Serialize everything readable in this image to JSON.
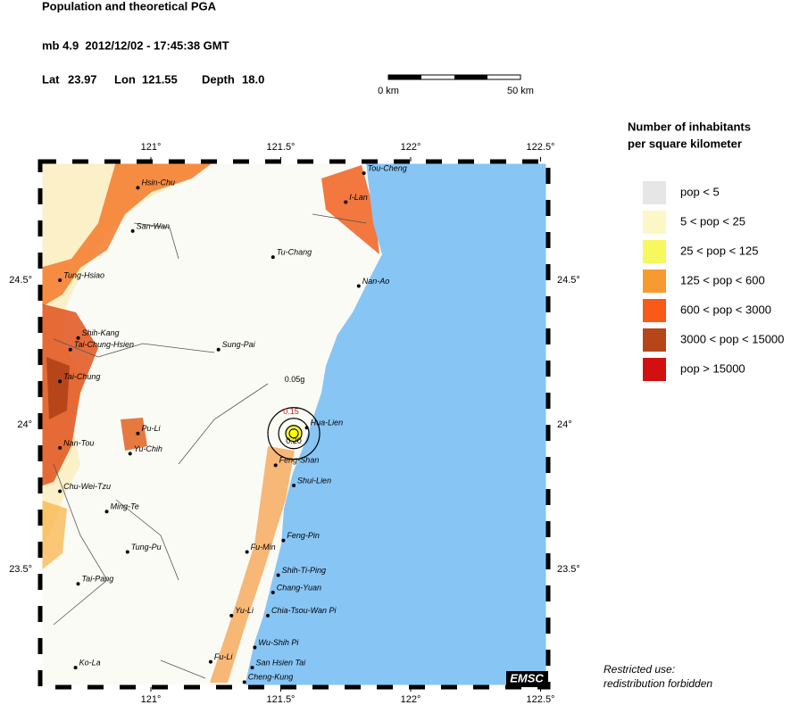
{
  "header": {
    "title": "Population and theoretical PGA",
    "event": "mb 4.9  2012/12/02 - 17:45:38 GMT",
    "lat_label": "Lat",
    "lon_label": "Lon",
    "depth_label": "Depth"
  },
  "epicenter": {
    "lat": 23.97,
    "lon": 121.55,
    "depth": {
      "value": 18,
      "label": "18.0"
    }
  },
  "scale_bar": {
    "start": "0 km",
    "end": "50 km"
  },
  "map": {
    "lon_ticks": [
      {
        "value": 121,
        "label": "121°"
      },
      {
        "value": 121.5,
        "label": "121.5°"
      },
      {
        "value": 122,
        "label": "122°"
      },
      {
        "value": 122.5,
        "label": "122.5°"
      }
    ],
    "lat_ticks": [
      {
        "value": 24.5,
        "label": "24.5°"
      },
      {
        "value": 24,
        "label": "24°"
      },
      {
        "value": 23.5,
        "label": "23.5°"
      }
    ],
    "pga_labels": [
      "0.05g",
      "0.15",
      "0.20"
    ],
    "badge": "EMSC",
    "cities": [
      {
        "name": "Tou-Cheng",
        "lon": 121.82,
        "lat": 24.87
      },
      {
        "name": "I-Lan",
        "lon": 121.75,
        "lat": 24.77
      },
      {
        "name": "Hsin-Chu",
        "lon": 120.95,
        "lat": 24.82
      },
      {
        "name": "San-Wan",
        "lon": 120.93,
        "lat": 24.67
      },
      {
        "name": "Tu-Chang",
        "lon": 121.47,
        "lat": 24.58
      },
      {
        "name": "Nan-Ao",
        "lon": 121.8,
        "lat": 24.48
      },
      {
        "name": "Tung-Hsiao",
        "lon": 120.65,
        "lat": 24.5
      },
      {
        "name": "Shih-Kang",
        "lon": 120.72,
        "lat": 24.3
      },
      {
        "name": "Tai-Chung-Hsien",
        "lon": 120.69,
        "lat": 24.26
      },
      {
        "name": "Sung-Pai",
        "lon": 121.26,
        "lat": 24.26
      },
      {
        "name": "Tai-Chung",
        "lon": 120.65,
        "lat": 24.15
      },
      {
        "name": "Pu-Li",
        "lon": 120.95,
        "lat": 23.97
      },
      {
        "name": "Yu-Chih",
        "lon": 120.92,
        "lat": 23.9
      },
      {
        "name": "Nan-Tou",
        "lon": 120.65,
        "lat": 23.92
      },
      {
        "name": "Hua-Lien",
        "lon": 121.6,
        "lat": 23.99
      },
      {
        "name": "Feng-Shan",
        "lon": 121.48,
        "lat": 23.86
      },
      {
        "name": "Shui-Lien",
        "lon": 121.55,
        "lat": 23.79
      },
      {
        "name": "Chu-Wei-Tzu",
        "lon": 120.65,
        "lat": 23.77
      },
      {
        "name": "Ming-Te",
        "lon": 120.83,
        "lat": 23.7
      },
      {
        "name": "Feng-Pin",
        "lon": 121.51,
        "lat": 23.6
      },
      {
        "name": "Fu-Min",
        "lon": 121.37,
        "lat": 23.56
      },
      {
        "name": "Tung-Pu",
        "lon": 120.91,
        "lat": 23.56
      },
      {
        "name": "Shih-Ti-Ping",
        "lon": 121.49,
        "lat": 23.48
      },
      {
        "name": "Tai-Pang",
        "lon": 120.72,
        "lat": 23.45
      },
      {
        "name": "Chang-Yuan",
        "lon": 121.47,
        "lat": 23.42
      },
      {
        "name": "Yu-Li",
        "lon": 121.31,
        "lat": 23.34
      },
      {
        "name": "Chia-Tsou-Wan Pi",
        "lon": 121.45,
        "lat": 23.34
      },
      {
        "name": "Wu-Shih Pi",
        "lon": 121.4,
        "lat": 23.23
      },
      {
        "name": "Fu-Li",
        "lon": 121.23,
        "lat": 23.18
      },
      {
        "name": "San Hsien Tai",
        "lon": 121.39,
        "lat": 23.16
      },
      {
        "name": "Ko-La",
        "lon": 120.71,
        "lat": 23.16
      },
      {
        "name": "Cheng-Kung",
        "lon": 121.36,
        "lat": 23.11
      }
    ]
  },
  "legend": {
    "title": [
      "Number of inhabitants",
      "per square kilometer"
    ],
    "items": [
      {
        "label": "pop < 5",
        "color": "#e6e6e6"
      },
      {
        "label": "5 < pop < 25",
        "color": "#fbf7c6"
      },
      {
        "label": "25 < pop < 125",
        "color": "#f7f75e"
      },
      {
        "label": "125 < pop < 600",
        "color": "#f89a32"
      },
      {
        "label": "600 < pop < 3000",
        "color": "#f85a18"
      },
      {
        "label": "3000 < pop < 15000",
        "color": "#b6461a"
      },
      {
        "label": "pop > 15000",
        "color": "#d21010"
      }
    ]
  },
  "footer": [
    "Restricted use:",
    "redistribution forbidden"
  ]
}
